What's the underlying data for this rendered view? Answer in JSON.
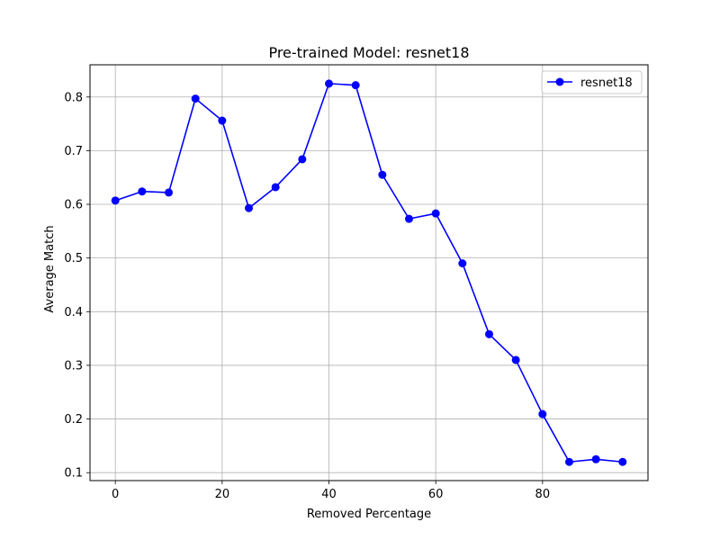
{
  "chart_data": {
    "type": "line",
    "title": "Pre-trained Model: resnet18",
    "xlabel": "Removed Percentage",
    "ylabel": "Average Match",
    "xlim": [
      -4.75,
      99.75
    ],
    "ylim": [
      0.0852,
      0.86
    ],
    "xticks": [
      0,
      20,
      40,
      60,
      80
    ],
    "yticks": [
      0.1,
      0.2,
      0.3,
      0.4,
      0.5,
      0.6,
      0.7,
      0.8
    ],
    "xtick_labels": [
      "0",
      "20",
      "40",
      "60",
      "80"
    ],
    "ytick_labels": [
      "0.1",
      "0.2",
      "0.3",
      "0.4",
      "0.5",
      "0.6",
      "0.7",
      "0.8"
    ],
    "grid": true,
    "legend_position": "top-right",
    "x": [
      0,
      5,
      10,
      15,
      20,
      25,
      30,
      35,
      40,
      45,
      50,
      55,
      60,
      65,
      70,
      75,
      80,
      85,
      90,
      95
    ],
    "series": [
      {
        "name": "resnet18",
        "color": "#0000ff",
        "marker": "circle",
        "values": [
          0.607,
          0.624,
          0.622,
          0.797,
          0.756,
          0.593,
          0.632,
          0.684,
          0.825,
          0.822,
          0.655,
          0.573,
          0.583,
          0.49,
          0.358,
          0.31,
          0.209,
          0.12,
          0.125,
          0.12
        ]
      }
    ]
  }
}
